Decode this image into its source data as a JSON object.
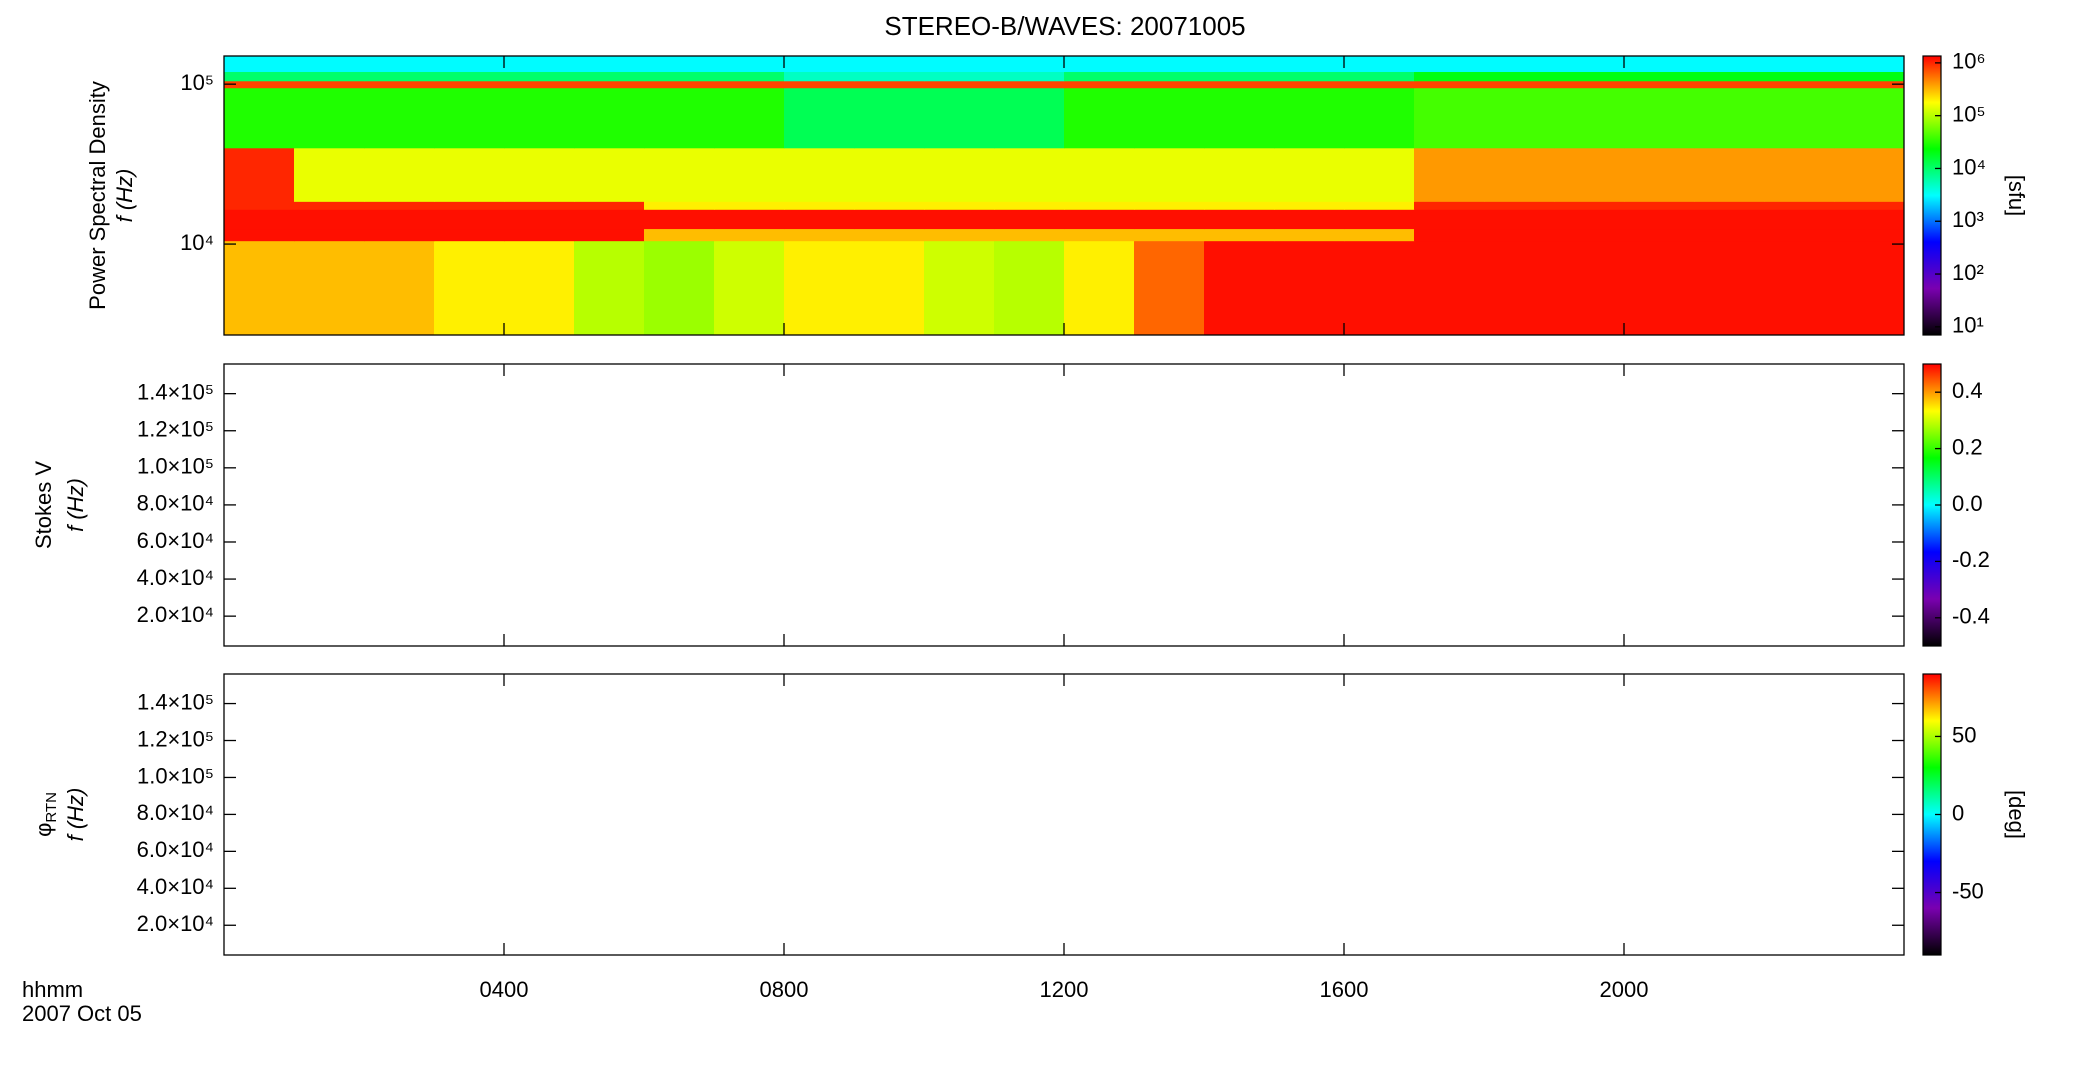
{
  "chart_data": [
    {
      "type": "heatmap",
      "title": "STEREO-B/WAVES: 20071005",
      "ylabel": [
        "Power Spectral Density",
        "f (Hz)"
      ],
      "ylog": true,
      "ylim": [
        2700,
        150000
      ],
      "yticks": [
        {
          "value": 10000,
          "label": "10⁴"
        },
        {
          "value": 100000,
          "label": "10⁵"
        }
      ],
      "colormap": [
        "#000000",
        "#7a00b0",
        "#0000ff",
        "#00ffff",
        "#00ff00",
        "#ffff00",
        "#ff0000"
      ],
      "x_edges": [
        0,
        1,
        2,
        3,
        4,
        5,
        6,
        7,
        8,
        9,
        10,
        11,
        12,
        13,
        14,
        15,
        16,
        17,
        18,
        19,
        20,
        21,
        22,
        23,
        24
      ],
      "y_edges": [
        2700,
        10500,
        12500,
        16500,
        18500,
        40000,
        95000,
        105000,
        120000,
        150000
      ],
      "z": [
        [
          300000,
          300000,
          300000,
          200000,
          200000,
          100000,
          80000,
          120000,
          200000,
          200000,
          120000,
          100000,
          200000,
          600000,
          1200000,
          1200000,
          1200000,
          1200000,
          1200000,
          1200000,
          1200000,
          1200000,
          1200000,
          1200000
        ],
        [
          1200000,
          1200000,
          1200000,
          1200000,
          1200000,
          1200000,
          300000,
          300000,
          300000,
          300000,
          300000,
          300000,
          300000,
          300000,
          300000,
          300000,
          300000,
          1200000,
          1200000,
          1200000,
          1200000,
          1200000,
          1200000,
          1200000
        ],
        [
          1200000,
          1200000,
          1200000,
          1200000,
          1200000,
          1200000,
          1200000,
          1200000,
          1200000,
          1200000,
          1200000,
          1200000,
          1200000,
          1200000,
          1200000,
          1200000,
          1200000,
          1200000,
          1200000,
          1200000,
          1200000,
          1200000,
          1200000,
          1200000
        ],
        [
          1000000,
          1000000,
          1000000,
          1000000,
          1000000,
          1000000,
          200000,
          200000,
          200000,
          200000,
          200000,
          200000,
          200000,
          200000,
          200000,
          200000,
          200000,
          1000000,
          1000000,
          1000000,
          1000000,
          1000000,
          1000000,
          1000000
        ],
        [
          1000000,
          150000,
          150000,
          150000,
          150000,
          150000,
          150000,
          150000,
          150000,
          150000,
          150000,
          150000,
          150000,
          150000,
          150000,
          150000,
          150000,
          400000,
          400000,
          400000,
          400000,
          400000,
          400000,
          400000
        ],
        [
          30000,
          30000,
          30000,
          30000,
          30000,
          30000,
          30000,
          30000,
          12000,
          12000,
          12000,
          12000,
          30000,
          30000,
          30000,
          30000,
          30000,
          40000,
          40000,
          40000,
          40000,
          40000,
          40000,
          40000
        ],
        [
          800000,
          800000,
          800000,
          800000,
          800000,
          800000,
          800000,
          800000,
          800000,
          800000,
          800000,
          800000,
          800000,
          800000,
          800000,
          800000,
          800000,
          800000,
          800000,
          800000,
          800000,
          800000,
          800000,
          800000
        ],
        [
          10000,
          10000,
          10000,
          10000,
          10000,
          10000,
          10000,
          10000,
          5000,
          5000,
          5000,
          5000,
          10000,
          10000,
          10000,
          10000,
          10000,
          20000,
          20000,
          20000,
          20000,
          20000,
          20000,
          20000
        ],
        [
          3000,
          3000,
          3000,
          3000,
          3000,
          3000,
          3000,
          3000,
          3000,
          3000,
          3000,
          3000,
          3000,
          3000,
          3000,
          3000,
          3000,
          3000,
          3000,
          3000,
          3000,
          3000,
          3000,
          3000
        ]
      ],
      "colorbar": {
        "log": true,
        "lim": [
          7,
          1350000
        ],
        "ticks": [
          {
            "value": 10,
            "label": "10¹"
          },
          {
            "value": 100,
            "label": "10²"
          },
          {
            "value": 1000,
            "label": "10³"
          },
          {
            "value": 10000,
            "label": "10⁴"
          },
          {
            "value": 100000,
            "label": "10⁵"
          },
          {
            "value": 1000000,
            "label": "10⁶"
          }
        ],
        "label": "[sfu]"
      }
    },
    {
      "type": "heatmap",
      "ylabel": [
        "Stokes V",
        "f (Hz)"
      ],
      "ylim": [
        3900,
        156000
      ],
      "yticks": [
        {
          "value": 20000,
          "label": "2.0×10⁴"
        },
        {
          "value": 40000,
          "label": "4.0×10⁴"
        },
        {
          "value": 60000,
          "label": "6.0×10⁴"
        },
        {
          "value": 80000,
          "label": "8.0×10⁴"
        },
        {
          "value": 100000,
          "label": "1.0×10⁵"
        },
        {
          "value": 120000,
          "label": "1.2×10⁵"
        },
        {
          "value": 140000,
          "label": "1.4×10⁵"
        }
      ],
      "colorbar": {
        "lim": [
          -0.5,
          0.5
        ],
        "ticks": [
          -0.4,
          -0.2,
          {
            "value": 0,
            "label": "0.0"
          },
          0.2,
          0.4
        ]
      }
    },
    {
      "type": "heatmap",
      "ylabel": [
        {
          "symbol": "φ",
          "subscript": "RTN"
        },
        "f (Hz)"
      ],
      "ylim": [
        3900,
        156000
      ],
      "yticks": [
        {
          "value": 20000,
          "label": "2.0×10⁴"
        },
        {
          "value": 40000,
          "label": "4.0×10⁴"
        },
        {
          "value": 60000,
          "label": "6.0×10⁴"
        },
        {
          "value": 80000,
          "label": "8.0×10⁴"
        },
        {
          "value": 100000,
          "label": "1.0×10⁵"
        },
        {
          "value": 120000,
          "label": "1.2×10⁵"
        },
        {
          "value": 140000,
          "label": "1.4×10⁵"
        }
      ],
      "colorbar": {
        "lim": [
          -90,
          90
        ],
        "ticks": [
          -50,
          0,
          50
        ],
        "label": "[deg]"
      },
      "xlim": [
        0,
        24
      ],
      "xticks": [
        {
          "value": 4,
          "label": "0400"
        },
        {
          "value": 8,
          "label": "0800"
        },
        {
          "value": 12,
          "label": "1200"
        },
        {
          "value": 16,
          "label": "1600"
        },
        {
          "value": 20,
          "label": "2000"
        }
      ],
      "xlabel": [
        "hhmm",
        "2007 Oct 05"
      ]
    }
  ]
}
